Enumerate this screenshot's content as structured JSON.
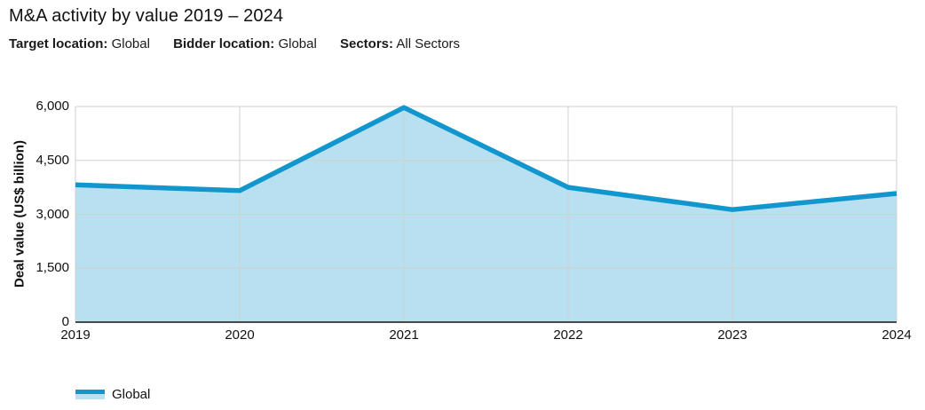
{
  "header": {
    "title": "M&A activity by value 2019 – 2024",
    "filters": [
      {
        "label": "Target location:",
        "value": "Global"
      },
      {
        "label": "Bidder location:",
        "value": "Global"
      },
      {
        "label": "Sectors:",
        "value": "All Sectors"
      }
    ]
  },
  "chart_data": {
    "type": "area",
    "title": "M&A activity by value 2019 – 2024",
    "x": [
      "2019",
      "2020",
      "2021",
      "2022",
      "2023",
      "2024"
    ],
    "series": [
      {
        "name": "Global",
        "values": [
          3820,
          3660,
          5970,
          3750,
          3130,
          3580
        ]
      }
    ],
    "xlabel": "",
    "ylabel": "Deal value (US$ billion)",
    "ylim": [
      0,
      6000
    ],
    "yticks": [
      0,
      1500,
      3000,
      4500,
      6000
    ],
    "ytick_labels": [
      "0",
      "1,500",
      "3,000",
      "4,500",
      "6,000"
    ],
    "grid": true,
    "legend_position": "bottom-left",
    "colors": {
      "line": "#1197ce",
      "fill": "#b9e0f1",
      "gridline": "#d0d0d0",
      "axis": "#333333"
    }
  },
  "legend": {
    "items": [
      {
        "label": "Global"
      }
    ]
  }
}
